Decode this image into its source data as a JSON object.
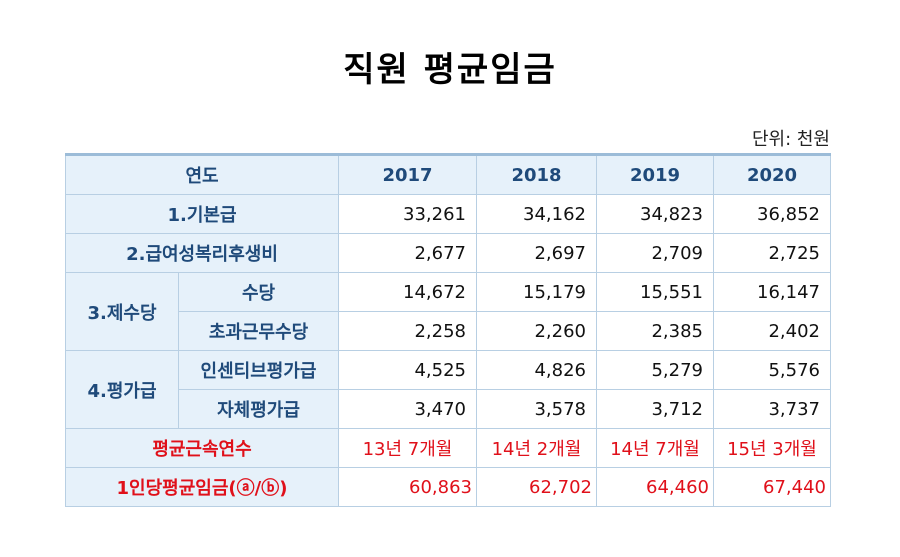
{
  "title": "직원 평균임금",
  "unit": "단위: 천원",
  "header": {
    "label": "연도",
    "years": [
      "2017",
      "2018",
      "2019",
      "2020"
    ]
  },
  "rows": {
    "base_pay": {
      "label": "1.기본급",
      "values": [
        "33,261",
        "34,162",
        "34,823",
        "36,852"
      ]
    },
    "welfare": {
      "label": "2.급여성복리후생비",
      "values": [
        "2,677",
        "2,697",
        "2,709",
        "2,725"
      ]
    },
    "allowances": {
      "label": "3.제수당",
      "allowance": {
        "label": "수당",
        "values": [
          "14,672",
          "15,179",
          "15,551",
          "16,147"
        ]
      },
      "overtime": {
        "label": "초과근무수당",
        "values": [
          "2,258",
          "2,260",
          "2,385",
          "2,402"
        ]
      }
    },
    "evaluation": {
      "label": "4.평가급",
      "incentive": {
        "label": "인센티브평가급",
        "values": [
          "4,525",
          "4,826",
          "5,279",
          "5,576"
        ]
      },
      "self_eval": {
        "label": "자체평가급",
        "values": [
          "3,470",
          "3,578",
          "3,712",
          "3,737"
        ]
      }
    },
    "tenure": {
      "label": "평균근속연수",
      "values": [
        "13년 7개월",
        "14년 2개월",
        "14년 7개월",
        "15년 3개월"
      ]
    },
    "avg_wage": {
      "label": "1인당평균임금(ⓐ/ⓑ)",
      "values": [
        "60,863",
        "62,702",
        "64,460",
        "67,440"
      ]
    }
  }
}
